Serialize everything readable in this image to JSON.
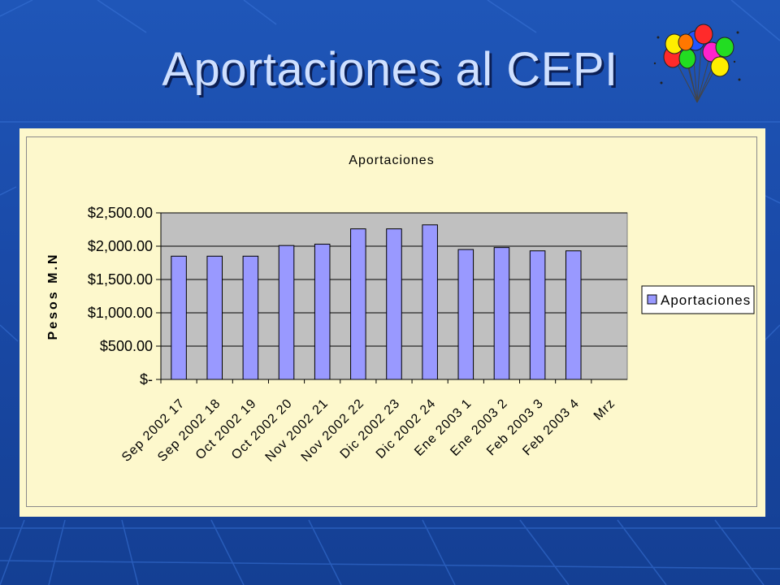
{
  "slide": {
    "title": "Aportaciones al CEPI",
    "background_color": "#1a4aa8",
    "title_color": "#cfe0ff"
  },
  "decoration": {
    "icon": "balloons-icon",
    "balloon_colors": [
      "#ff2a2a",
      "#ffee00",
      "#22dd22",
      "#2255ff",
      "#ff22cc",
      "#ff7700"
    ]
  },
  "chart_data": {
    "type": "bar",
    "title": "Aportaciones",
    "ylabel": "Pesos M.N",
    "xlabel": "",
    "categories": [
      "Sep 2002 17",
      "Sep 2002 18",
      "Oct 2002 19",
      "Oct 2002 20",
      "Nov 2002 21",
      "Nov 2002 22",
      "Dic 2002 23",
      "Dic 2002 24",
      "Ene 2003  1",
      "Ene 2003 2",
      "Feb 2003 3",
      "Feb 2003 4",
      "Mrz"
    ],
    "series": [
      {
        "name": "Aportaciones",
        "color": "#9999ff",
        "values": [
          1850,
          1850,
          1850,
          2010,
          2030,
          2260,
          2260,
          2320,
          1950,
          1980,
          1930,
          1930,
          null
        ]
      }
    ],
    "ylim": [
      0,
      2500
    ],
    "yticks": [
      "$-",
      "$500.00",
      "$1,000.00",
      "$1,500.00",
      "$2,000.00",
      "$2,500.00"
    ],
    "grid": true,
    "plot_background": "#c0c0c0",
    "chart_background": "#fdf8cc",
    "legend": {
      "position": "right",
      "entries": [
        "Aportaciones"
      ]
    }
  }
}
